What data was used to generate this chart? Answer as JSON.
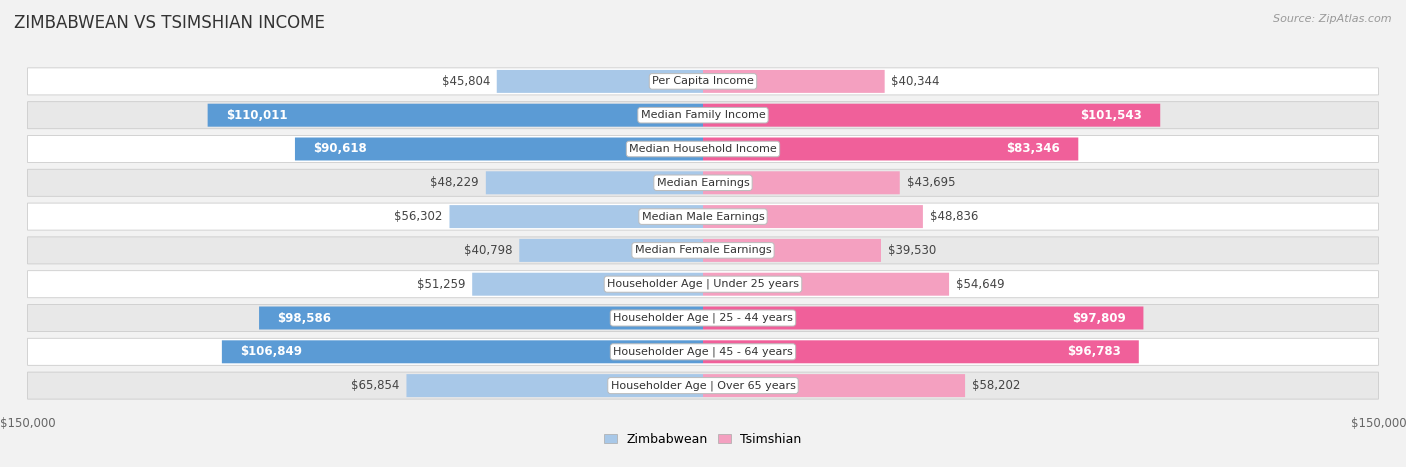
{
  "title": "ZIMBABWEAN VS TSIMSHIAN INCOME",
  "source": "Source: ZipAtlas.com",
  "categories": [
    "Per Capita Income",
    "Median Family Income",
    "Median Household Income",
    "Median Earnings",
    "Median Male Earnings",
    "Median Female Earnings",
    "Householder Age | Under 25 years",
    "Householder Age | 25 - 44 years",
    "Householder Age | 45 - 64 years",
    "Householder Age | Over 65 years"
  ],
  "zimbabwean_values": [
    45804,
    110011,
    90618,
    48229,
    56302,
    40798,
    51259,
    98586,
    106849,
    65854
  ],
  "tsimshian_values": [
    40344,
    101543,
    83346,
    43695,
    48836,
    39530,
    54649,
    97809,
    96783,
    58202
  ],
  "zimbabwean_labels": [
    "$45,804",
    "$110,011",
    "$90,618",
    "$48,229",
    "$56,302",
    "$40,798",
    "$51,259",
    "$98,586",
    "$106,849",
    "$65,854"
  ],
  "tsimshian_labels": [
    "$40,344",
    "$101,543",
    "$83,346",
    "$43,695",
    "$48,836",
    "$39,530",
    "$54,649",
    "$97,809",
    "$96,783",
    "$58,202"
  ],
  "max_value": 150000,
  "zimbabwean_color_light": "#a8c8e8",
  "zimbabwean_color_dark": "#5b9bd5",
  "tsimshian_color_light": "#f4a0c0",
  "tsimshian_color_dark": "#f0609a",
  "label_threshold": 75000,
  "background_color": "#f2f2f2",
  "row_bg_even": "#ffffff",
  "row_bg_odd": "#e8e8e8",
  "title_fontsize": 12,
  "label_fontsize": 8.5,
  "category_fontsize": 8,
  "axis_label_fontsize": 8.5,
  "legend_fontsize": 9
}
